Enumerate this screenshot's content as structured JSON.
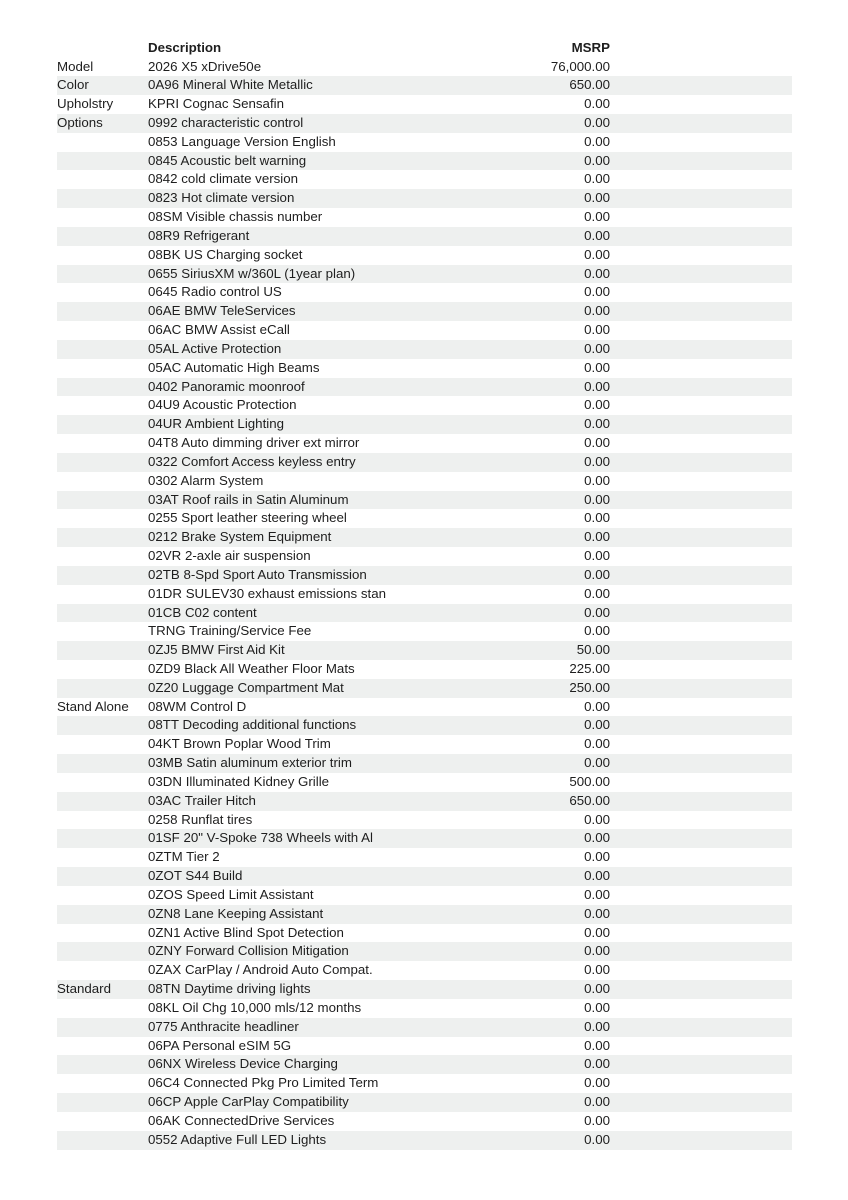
{
  "colors": {
    "stripe": "#eef0ef",
    "text": "#1e1e1e",
    "paper": "#ffffff"
  },
  "table": {
    "headers": {
      "description": "Description",
      "msrp": "MSRP"
    },
    "rows": [
      {
        "category": "Model",
        "description": "2026 X5 xDrive50e",
        "msrp": "76,000.00"
      },
      {
        "category": "Color",
        "description": "0A96 Mineral White Metallic",
        "msrp": "650.00"
      },
      {
        "category": "Upholstry",
        "description": "KPRI Cognac Sensafin",
        "msrp": "0.00"
      },
      {
        "category": "Options",
        "description": "0992 characteristic control",
        "msrp": "0.00"
      },
      {
        "category": "",
        "description": "0853 Language Version English",
        "msrp": "0.00"
      },
      {
        "category": "",
        "description": "0845 Acoustic belt warning",
        "msrp": "0.00"
      },
      {
        "category": "",
        "description": "0842 cold climate version",
        "msrp": "0.00"
      },
      {
        "category": "",
        "description": "0823 Hot climate version",
        "msrp": "0.00"
      },
      {
        "category": "",
        "description": "08SM Visible chassis number",
        "msrp": "0.00"
      },
      {
        "category": "",
        "description": "08R9 Refrigerant",
        "msrp": "0.00"
      },
      {
        "category": "",
        "description": "08BK US Charging socket",
        "msrp": "0.00"
      },
      {
        "category": "",
        "description": "0655 SiriusXM w/360L (1year plan)",
        "msrp": "0.00"
      },
      {
        "category": "",
        "description": "0645 Radio control US",
        "msrp": "0.00"
      },
      {
        "category": "",
        "description": "06AE BMW TeleServices",
        "msrp": "0.00"
      },
      {
        "category": "",
        "description": "06AC BMW Assist eCall",
        "msrp": "0.00"
      },
      {
        "category": "",
        "description": "05AL Active Protection",
        "msrp": "0.00"
      },
      {
        "category": "",
        "description": "05AC Automatic High Beams",
        "msrp": "0.00"
      },
      {
        "category": "",
        "description": "0402 Panoramic moonroof",
        "msrp": "0.00"
      },
      {
        "category": "",
        "description": "04U9 Acoustic Protection",
        "msrp": "0.00"
      },
      {
        "category": "",
        "description": "04UR Ambient Lighting",
        "msrp": "0.00"
      },
      {
        "category": "",
        "description": "04T8 Auto dimming driver ext mirror",
        "msrp": "0.00"
      },
      {
        "category": "",
        "description": "0322 Comfort Access keyless entry",
        "msrp": "0.00"
      },
      {
        "category": "",
        "description": "0302 Alarm System",
        "msrp": "0.00"
      },
      {
        "category": "",
        "description": "03AT Roof rails in Satin Aluminum",
        "msrp": "0.00"
      },
      {
        "category": "",
        "description": "0255 Sport leather steering wheel",
        "msrp": "0.00"
      },
      {
        "category": "",
        "description": "0212 Brake System Equipment",
        "msrp": "0.00"
      },
      {
        "category": "",
        "description": "02VR 2-axle air suspension",
        "msrp": "0.00"
      },
      {
        "category": "",
        "description": "02TB 8-Spd Sport Auto Transmission",
        "msrp": "0.00"
      },
      {
        "category": "",
        "description": "01DR SULEV30 exhaust emissions stan",
        "msrp": "0.00"
      },
      {
        "category": "",
        "description": "01CB C02 content",
        "msrp": "0.00"
      },
      {
        "category": "",
        "description": "TRNG Training/Service Fee",
        "msrp": "0.00"
      },
      {
        "category": "",
        "description": "0ZJ5 BMW First Aid Kit",
        "msrp": "50.00"
      },
      {
        "category": "",
        "description": "0ZD9 Black All Weather Floor Mats",
        "msrp": "225.00"
      },
      {
        "category": "",
        "description": "0Z20 Luggage Compartment Mat",
        "msrp": "250.00"
      },
      {
        "category": "Stand Alone",
        "description": "08WM Control D",
        "msrp": "0.00"
      },
      {
        "category": "",
        "description": "08TT Decoding additional functions",
        "msrp": "0.00"
      },
      {
        "category": "",
        "description": "04KT Brown Poplar Wood Trim",
        "msrp": "0.00"
      },
      {
        "category": "",
        "description": "03MB Satin aluminum exterior trim",
        "msrp": "0.00"
      },
      {
        "category": "",
        "description": "03DN Illuminated Kidney Grille",
        "msrp": "500.00"
      },
      {
        "category": "",
        "description": "03AC Trailer Hitch",
        "msrp": "650.00"
      },
      {
        "category": "",
        "description": "0258 Runflat tires",
        "msrp": "0.00"
      },
      {
        "category": "",
        "description": "01SF 20\" V-Spoke 738 Wheels with Al",
        "msrp": "0.00"
      },
      {
        "category": "",
        "description": "0ZTM Tier 2",
        "msrp": "0.00"
      },
      {
        "category": "",
        "description": "0ZOT S44 Build",
        "msrp": "0.00"
      },
      {
        "category": "",
        "description": "0ZOS Speed Limit Assistant",
        "msrp": "0.00"
      },
      {
        "category": "",
        "description": "0ZN8 Lane Keeping Assistant",
        "msrp": "0.00"
      },
      {
        "category": "",
        "description": "0ZN1 Active Blind Spot Detection",
        "msrp": "0.00"
      },
      {
        "category": "",
        "description": "0ZNY Forward Collision Mitigation",
        "msrp": "0.00"
      },
      {
        "category": "",
        "description": "0ZAX CarPlay / Android Auto Compat.",
        "msrp": "0.00"
      },
      {
        "category": "Standard",
        "description": "08TN Daytime driving lights",
        "msrp": "0.00"
      },
      {
        "category": "",
        "description": "08KL Oil Chg 10,000 mls/12 months",
        "msrp": "0.00"
      },
      {
        "category": "",
        "description": "0775 Anthracite headliner",
        "msrp": "0.00"
      },
      {
        "category": "",
        "description": "06PA Personal eSIM 5G",
        "msrp": "0.00"
      },
      {
        "category": "",
        "description": "06NX Wireless Device Charging",
        "msrp": "0.00"
      },
      {
        "category": "",
        "description": "06C4 Connected Pkg Pro Limited Term",
        "msrp": "0.00"
      },
      {
        "category": "",
        "description": "06CP Apple CarPlay Compatibility",
        "msrp": "0.00"
      },
      {
        "category": "",
        "description": "06AK ConnectedDrive Services",
        "msrp": "0.00"
      },
      {
        "category": "",
        "description": "0552 Adaptive Full LED Lights",
        "msrp": "0.00"
      }
    ]
  }
}
